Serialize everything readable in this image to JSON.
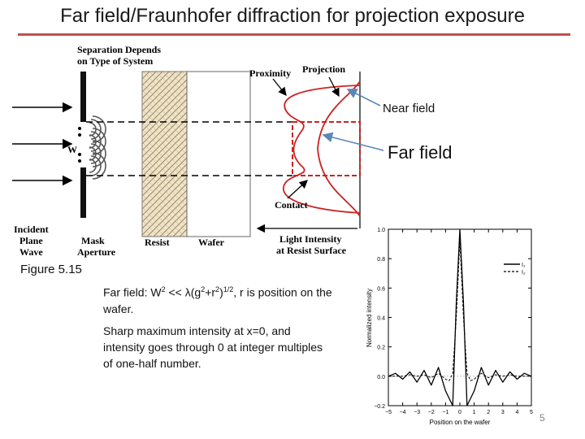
{
  "slide": {
    "title": "Far field/Fraunhofer diffraction for projection exposure",
    "figure_caption": "Figure 5.15",
    "callouts": {
      "near_field": "Near field",
      "far_field": "Far field"
    },
    "note1": {
      "pre": "Far field: W",
      "sup1": "2",
      "mid1": " << λ(g",
      "sup2": "2",
      "mid2": "+r",
      "sup3": "2",
      "mid3": ")",
      "sup4": "1/2",
      "post": ", r is position on the wafer."
    },
    "note2": "Sharp maximum intensity at x=0, and intensity goes through 0 at integer multiples of one-half number.",
    "page_number": "5"
  },
  "diagram": {
    "separation_label_line1": "Separation Depends",
    "separation_label_line2": "on Type of System",
    "proximity": "Proximity",
    "projection": "Projection",
    "contact": "Contact",
    "w_label": "W",
    "incident_line1": "Incident",
    "incident_line2": "Plane",
    "incident_line3": "Wave",
    "mask_line1": "Mask",
    "mask_line2": "Aperture",
    "resist": "Resist",
    "wafer": "Wafer",
    "intensity_line1": "Light Intensity",
    "intensity_line2": "at Resist Surface"
  },
  "chart_data": {
    "type": "line",
    "xlabel": "Position on the wafer",
    "ylabel": "Normalized intensity",
    "xlim": [
      -5,
      5
    ],
    "ylim": [
      -0.2,
      1.0
    ],
    "xticks": [
      "−5",
      "−4",
      "−3",
      "−2",
      "−1",
      "0",
      "1",
      "2",
      "3",
      "4",
      "5"
    ],
    "yticks": [
      "−0.2",
      "0.0",
      "0.2",
      "0.4",
      "0.6",
      "0.8",
      "1.0"
    ],
    "legend_position": "top-right",
    "series": [
      {
        "name": "I1",
        "legend_text": "I₁",
        "style": "solid",
        "x": [
          -5,
          -4.5,
          -4,
          -3.5,
          -3,
          -2.5,
          -2,
          -1.5,
          -1,
          -0.75,
          -0.5,
          -0.25,
          0,
          0.25,
          0.5,
          0.75,
          1,
          1.5,
          2,
          2.5,
          3,
          3.5,
          4,
          4.5,
          5
        ],
        "y": [
          0.0,
          0.02,
          -0.02,
          0.03,
          -0.04,
          0.04,
          -0.06,
          0.06,
          -0.1,
          -0.15,
          -0.2,
          0.5,
          1.0,
          0.5,
          -0.2,
          -0.15,
          -0.1,
          0.06,
          -0.06,
          0.04,
          -0.04,
          0.03,
          -0.02,
          0.02,
          0.0
        ]
      },
      {
        "name": "I2",
        "legend_text": "I₂",
        "style": "dashed",
        "x": [
          -5,
          -4.5,
          -4,
          -3.5,
          -3,
          -2.5,
          -2,
          -1.5,
          -1,
          -0.75,
          -0.5,
          -0.25,
          0,
          0.25,
          0.5,
          0.75,
          1,
          1.5,
          2,
          2.5,
          3,
          3.5,
          4,
          4.5,
          5
        ],
        "y": [
          0.0,
          0.0,
          0.0,
          0.01,
          0.0,
          0.01,
          -0.01,
          0.02,
          -0.02,
          -0.03,
          0.02,
          0.4,
          0.93,
          0.4,
          0.02,
          -0.03,
          -0.02,
          0.02,
          -0.01,
          0.01,
          0.0,
          0.01,
          0.0,
          0.0,
          0.0
        ]
      }
    ]
  },
  "colors": {
    "title_rule": "#c0504d",
    "red": "#cc2222",
    "callout_line": "#5b86b8"
  }
}
